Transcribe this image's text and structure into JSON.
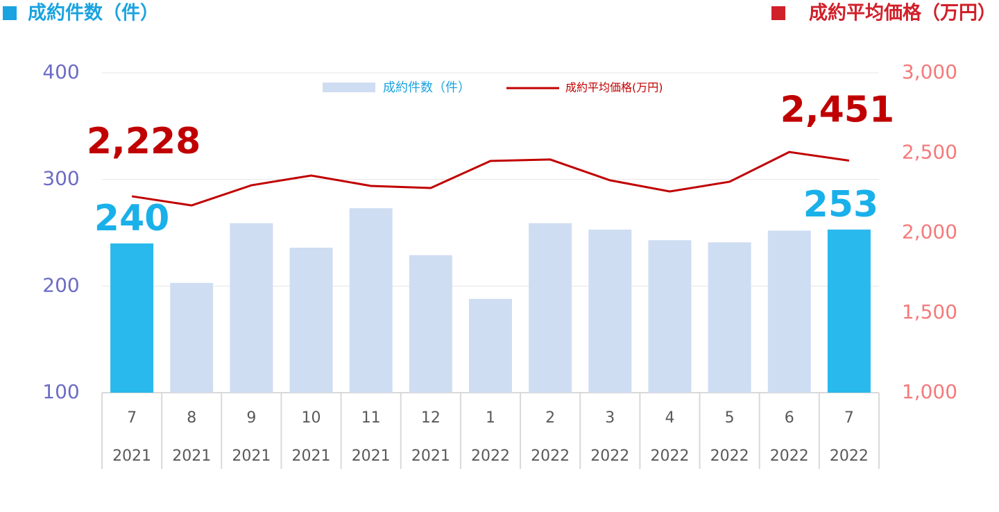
{
  "chart_data": {
    "type": "bar-line",
    "header_left": "成約件数（件）",
    "header_right": "成約平均価格（万円）",
    "categories": [
      "7",
      "8",
      "9",
      "10",
      "11",
      "12",
      "1",
      "2",
      "3",
      "4",
      "5",
      "6",
      "7"
    ],
    "category_years": [
      "2021",
      "2021",
      "2021",
      "2021",
      "2021",
      "2021",
      "2022",
      "2022",
      "2022",
      "2022",
      "2022",
      "2022",
      "2022"
    ],
    "series": [
      {
        "name": "成約件数（件）",
        "type": "bar",
        "color": "#cfddf2",
        "colors": [
          "#29b9ec",
          "#cfddf2",
          "#cfddf2",
          "#cfddf2",
          "#cfddf2",
          "#cfddf2",
          "#cfddf2",
          "#cfddf2",
          "#cfddf2",
          "#cfddf2",
          "#cfddf2",
          "#cfddf2",
          "#29b9ec"
        ],
        "values": [
          240,
          203,
          259,
          236,
          273,
          229,
          188,
          259,
          253,
          243,
          241,
          252,
          253
        ],
        "value_labels": [
          "240",
          null,
          null,
          null,
          null,
          null,
          null,
          null,
          null,
          null,
          null,
          null,
          "253"
        ]
      },
      {
        "name": "成約平均価格(万円)",
        "type": "line",
        "axis": "y2",
        "color": "#c00000",
        "values": [
          2228,
          2171,
          2297,
          2358,
          2293,
          2280,
          2449,
          2458,
          2328,
          2258,
          2319,
          2505,
          2451
        ],
        "value_labels": [
          "2,228",
          null,
          null,
          null,
          null,
          null,
          null,
          null,
          null,
          null,
          null,
          null,
          "2,451"
        ]
      }
    ],
    "ylim": [
      100,
      400
    ],
    "yticks": [
      100,
      200,
      300,
      400
    ],
    "y2lim": [
      1000,
      3000
    ],
    "y2ticks": [
      {
        "value": 1000,
        "label": "1,000"
      },
      {
        "value": 1500,
        "label": "1,500"
      },
      {
        "value": 2000,
        "label": "2,000"
      },
      {
        "value": 2500,
        "label": "2,500"
      },
      {
        "value": 3000,
        "label": "3,000"
      }
    ],
    "grid": true
  }
}
